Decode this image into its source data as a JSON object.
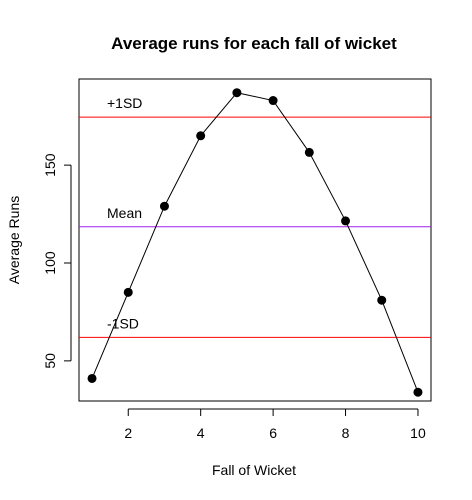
{
  "chart_data": {
    "type": "line",
    "title": "Average runs for each fall of wicket",
    "xlabel": "Fall of Wicket",
    "ylabel": "Average Runs",
    "x": [
      1,
      2,
      3,
      4,
      5,
      6,
      7,
      8,
      9,
      10
    ],
    "xticks": [
      2,
      4,
      6,
      8,
      10
    ],
    "yticks": [
      50,
      100,
      150
    ],
    "xlim": [
      0.64,
      10.36
    ],
    "ylim": [
      29.5,
      194
    ],
    "grid": false,
    "series": [
      {
        "values": [
          41,
          85,
          129,
          165,
          187,
          183,
          156.5,
          121.5,
          81,
          34
        ],
        "color": "#000000",
        "marker": "filled-circle"
      }
    ],
    "reference_lines": [
      {
        "label": "+1SD",
        "y": 174.5,
        "color": "#ff0000"
      },
      {
        "label": "Mean",
        "y": 118.5,
        "color": "#a020f0"
      },
      {
        "label": "-1SD",
        "y": 62,
        "color": "#ff0000"
      }
    ]
  }
}
